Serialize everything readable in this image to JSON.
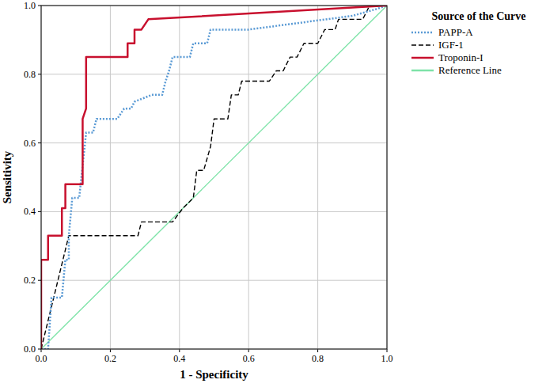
{
  "chart_data": {
    "type": "line",
    "x_label": "1 - Specificity",
    "y_label": "Sensitivity",
    "legend_title": "Source of the Curve",
    "legend": "right",
    "grid": true,
    "xlim": [
      0,
      1
    ],
    "ylim": [
      0,
      1
    ],
    "xticks": [
      {
        "value": 0,
        "label": "0.0"
      },
      {
        "value": 0.2,
        "label": "0.2"
      },
      {
        "value": 0.4,
        "label": "0.4"
      },
      {
        "value": 0.6,
        "label": "0.6"
      },
      {
        "value": 0.8,
        "label": "0.8"
      },
      {
        "value": 1,
        "label": "1.0"
      }
    ],
    "yticks": [
      {
        "value": 0,
        "label": "0.0"
      },
      {
        "value": 0.2,
        "label": "0.2"
      },
      {
        "value": 0.4,
        "label": "0.4"
      },
      {
        "value": 0.6,
        "label": "0.6"
      },
      {
        "value": 0.8,
        "label": "0.8"
      },
      {
        "value": 1,
        "label": "1.0"
      }
    ],
    "series": [
      {
        "name": "PAPP-A",
        "color": "#5b9bd5",
        "line_style": "dotted",
        "x": [
          0,
          0.02,
          0.03,
          0.06,
          0.07,
          0.08,
          0.08,
          0.09,
          0.11,
          0.13,
          0.15,
          0.16,
          0.22,
          0.24,
          0.26,
          0.27,
          0.32,
          0.35,
          0.36,
          0.37,
          0.38,
          0.43,
          0.44,
          0.48,
          0.49,
          0.6,
          0.9,
          0.97,
          1
        ],
        "values": [
          0,
          0,
          0.15,
          0.15,
          0.26,
          0.26,
          0.33,
          0.44,
          0.44,
          0.63,
          0.63,
          0.67,
          0.67,
          0.7,
          0.7,
          0.72,
          0.74,
          0.74,
          0.78,
          0.81,
          0.85,
          0.85,
          0.89,
          0.89,
          0.93,
          0.93,
          0.97,
          0.99,
          1
        ]
      },
      {
        "name": "IGF-1",
        "color": "#000000",
        "line_style": "dashed",
        "x": [
          0,
          0.08,
          0.28,
          0.29,
          0.38,
          0.41,
          0.44,
          0.45,
          0.47,
          0.49,
          0.5,
          0.54,
          0.55,
          0.57,
          0.58,
          0.66,
          0.68,
          0.7,
          0.72,
          0.74,
          0.76,
          0.8,
          0.82,
          0.85,
          0.86,
          0.93,
          0.95,
          1
        ],
        "values": [
          0,
          0.33,
          0.33,
          0.37,
          0.37,
          0.41,
          0.44,
          0.52,
          0.52,
          0.59,
          0.67,
          0.67,
          0.74,
          0.74,
          0.78,
          0.78,
          0.81,
          0.81,
          0.85,
          0.85,
          0.89,
          0.89,
          0.93,
          0.93,
          0.96,
          0.96,
          1,
          1
        ]
      },
      {
        "name": "Troponin-I",
        "color": "#c8102e",
        "line_style": "solid",
        "x": [
          0,
          0,
          0.02,
          0.02,
          0.06,
          0.06,
          0.07,
          0.07,
          0.12,
          0.12,
          0.13,
          0.13,
          0.25,
          0.25,
          0.27,
          0.27,
          0.29,
          0.31,
          1
        ],
        "values": [
          0,
          0.26,
          0.26,
          0.33,
          0.33,
          0.41,
          0.41,
          0.48,
          0.48,
          0.67,
          0.7,
          0.85,
          0.85,
          0.89,
          0.89,
          0.93,
          0.93,
          0.96,
          1
        ]
      },
      {
        "name": "Reference Line",
        "color": "#7ee3a8",
        "line_style": "solid",
        "x": [
          0,
          1
        ],
        "values": [
          0,
          1
        ]
      }
    ]
  }
}
